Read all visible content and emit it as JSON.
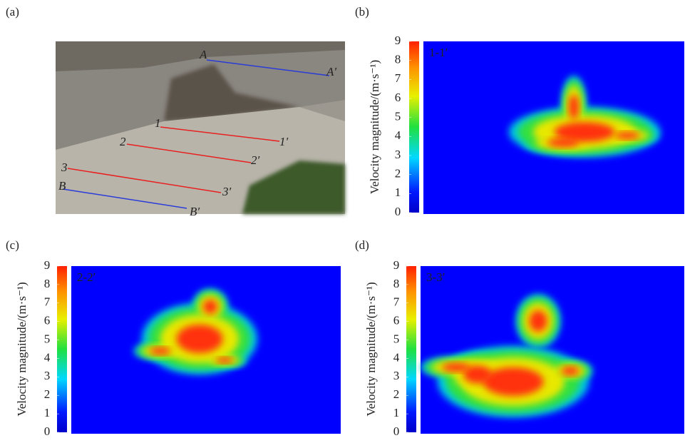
{
  "panels": [
    {
      "label": "(a)",
      "photo_labels": [
        "A",
        "A′",
        "B",
        "B′",
        "1",
        "1′",
        "2",
        "2′",
        "3",
        "3′"
      ]
    },
    {
      "label": "(b)",
      "section": "1-1′",
      "colorbar": {
        "label": "Velocity magnitude/(m·s⁻¹)",
        "lim": [
          0,
          9
        ],
        "ticks": [
          0,
          1,
          2,
          3,
          4,
          5,
          6,
          7,
          8,
          9
        ]
      }
    },
    {
      "label": "(c)",
      "section": "2-2′",
      "colorbar": {
        "label": "Velocity magnitude/(m·s⁻¹)",
        "lim": [
          0,
          9
        ],
        "ticks": [
          0,
          1,
          2,
          3,
          4,
          5,
          6,
          7,
          8,
          9
        ]
      }
    },
    {
      "label": "(d)",
      "section": "3-3′",
      "colorbar": {
        "label": "Velocity magnitude/(m·s⁻¹)",
        "lim": [
          0,
          9
        ],
        "ticks": [
          0,
          1,
          2,
          3,
          4,
          5,
          6,
          7,
          8,
          9
        ]
      }
    }
  ]
}
